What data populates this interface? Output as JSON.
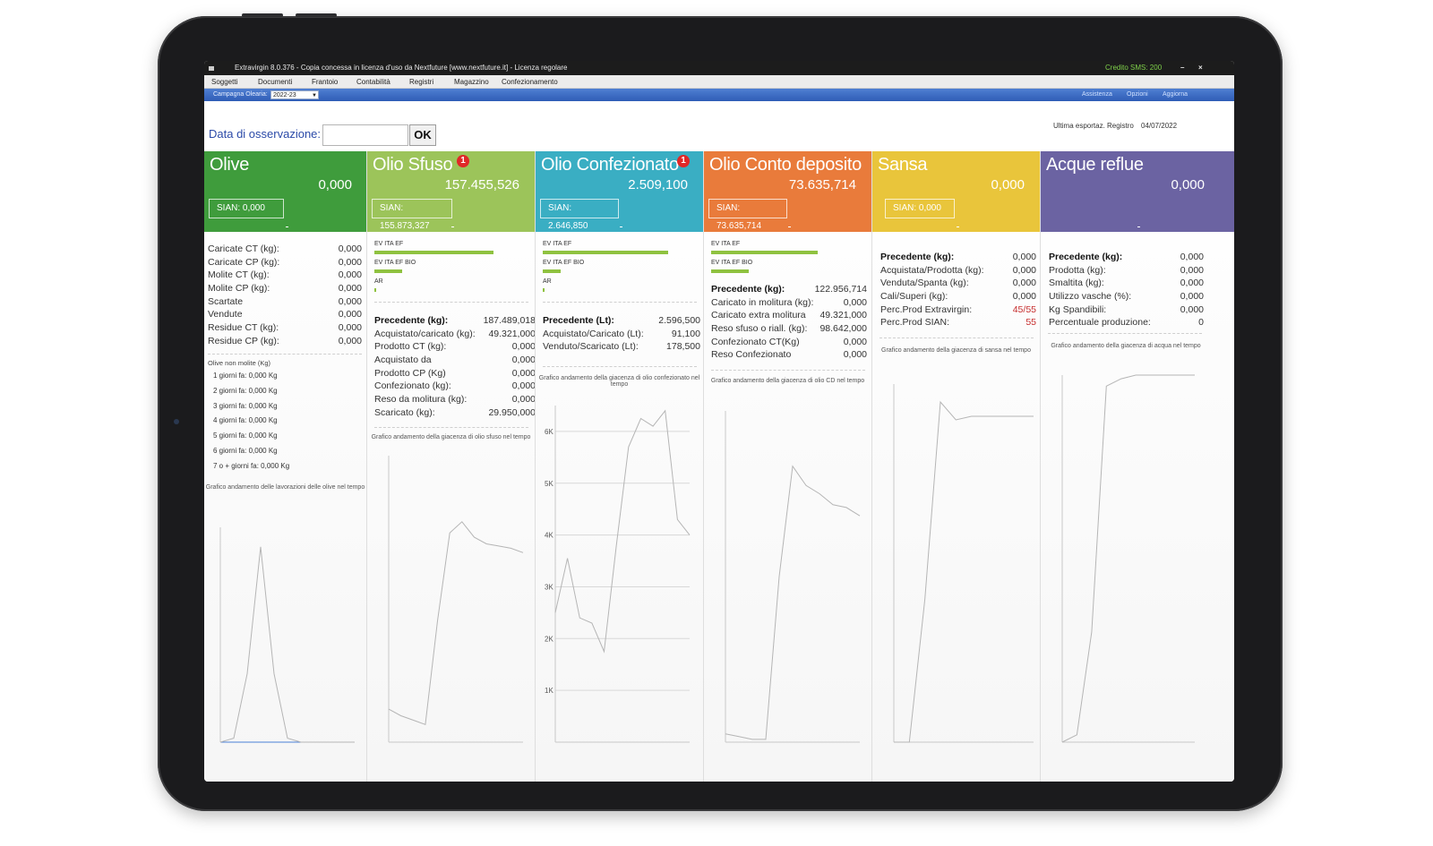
{
  "titlebar": {
    "title": "Extravirgin 8.0.376 - Copia concessa in licenza d'uso da Nextfuture [www.nextfuture.it] - Licenza regolare",
    "credit": "Credito SMS: 200",
    "minimize": "–",
    "close": "×"
  },
  "menu": [
    "Soggetti",
    "Documenti",
    "Frantoio",
    "Contabilità",
    "Registri",
    "Magazzino",
    "Confezionamento"
  ],
  "campaign": {
    "label": "Campagna Olearia:",
    "value": "2022-23",
    "links": [
      "Assistenza",
      "Opzioni",
      "Aggiorna"
    ]
  },
  "observation": {
    "label": "Data di osservazione:",
    "ok": "OK",
    "value": ""
  },
  "export": {
    "label": "Ultima esportaz. Registro",
    "date": "04/07/2022"
  },
  "colors": {
    "olive": "#3f9c3c",
    "sfuso": "#9cc45a",
    "confezionato": "#3aaec3",
    "conto": "#e97b3b",
    "sansa": "#e9c53b",
    "acque": "#6b63a2",
    "bar": "#8fc240",
    "badge": "#e02828"
  },
  "columns": {
    "olive": {
      "title": "Olive",
      "total": "0,000",
      "sian": "SIAN: 0,000",
      "rows": [
        {
          "label": "Caricate CT (kg):",
          "value": "0,000"
        },
        {
          "label": "Caricate CP (kg):",
          "value": "0,000"
        },
        {
          "label": "Molite CT (kg):",
          "value": "0,000"
        },
        {
          "label": "Molite CP (kg):",
          "value": "0,000"
        },
        {
          "label": "Scartate",
          "value": "0,000"
        },
        {
          "label": "Vendute",
          "value": "0,000"
        },
        {
          "label": "Residue CT (kg):",
          "value": "0,000"
        },
        {
          "label": "Residue CP (kg):",
          "value": "0,000"
        }
      ],
      "nomol_title": "Olive non molite (Kg)",
      "nomol": [
        "1 giorni fa: 0,000 Kg",
        "2 giorni fa: 0,000 Kg",
        "3 giorni fa: 0,000 Kg",
        "4 giorni fa: 0,000 Kg",
        "5 giorni fa: 0,000 Kg",
        "6 giorni fa: 0,000 Kg",
        "7 o + giorni fa: 0,000 Kg"
      ],
      "chart_caption": "Grafico andamento delle lavorazioni delle olive nel tempo"
    },
    "sfuso": {
      "title": "Olio Sfuso",
      "badge": "1",
      "total": "157.455,526",
      "sian": "SIAN: 155.873,327",
      "bars": [
        {
          "label": "EV ITA EF",
          "level": 0.95
        },
        {
          "label": "EV ITA EF BIO",
          "level": 0.22
        },
        {
          "label": "AR",
          "level": 0.01
        }
      ],
      "rows": [
        {
          "label": "Precedente (kg):",
          "value": "187.489,018",
          "bold": true
        },
        {
          "label": "Acquistato/caricato (kg):",
          "value": "49.321,000"
        },
        {
          "label": "Prodotto CT (kg):",
          "value": "0,000"
        },
        {
          "label": "Acquistato da",
          "value": "0,000"
        },
        {
          "label": "Prodotto CP (Kg)",
          "value": "0,000"
        },
        {
          "label": "Confezionato (kg):",
          "value": "0,000"
        },
        {
          "label": "Reso da molitura (kg):",
          "value": "0,000"
        },
        {
          "label": "Scaricato (kg):",
          "value": "29.950,000"
        }
      ],
      "chart_caption": "Grafico andamento della giacenza di olio sfuso nel tempo"
    },
    "confezionato": {
      "title": "Olio Confezionato",
      "badge": "1",
      "total": "2.509,100",
      "sian": "SIAN: 2.646,850",
      "bars": [
        {
          "label": "EV ITA EF",
          "level": 1.0
        },
        {
          "label": "EV ITA EF BIO",
          "level": 0.14
        },
        {
          "label": "AR",
          "level": 0.01
        }
      ],
      "rows": [
        {
          "label": "Precedente (Lt):",
          "value": "2.596,500",
          "bold": true
        },
        {
          "label": "Acquistato/Caricato (Lt):",
          "value": "91,100"
        },
        {
          "label": "Venduto/Scaricato (Lt):",
          "value": "178,500"
        }
      ],
      "chart_caption": "Grafico andamento della giacenza di olio confezionato nel tempo"
    },
    "conto": {
      "title": "Olio Conto deposito",
      "total": "73.635,714",
      "sian": "SIAN: 73.635,714",
      "bars": [
        {
          "label": "EV ITA EF",
          "level": 0.85
        },
        {
          "label": "EV ITA EF BIO",
          "level": 0.3
        }
      ],
      "rows": [
        {
          "label": "Precedente (kg):",
          "value": "122.956,714",
          "bold": true
        },
        {
          "label": "Caricato in molitura (kg):",
          "value": "0,000"
        },
        {
          "label": "Caricato extra molitura",
          "value": "49.321,000"
        },
        {
          "label": "Reso sfuso o riall. (kg):",
          "value": "98.642,000"
        },
        {
          "label": "Confezionato CT(Kg)",
          "value": "0,000"
        },
        {
          "label": "Reso Confezionato",
          "value": "0,000"
        }
      ],
      "chart_caption": "Grafico andamento della giacenza di olio CD nel tempo"
    },
    "sansa": {
      "title": "Sansa",
      "total": "0,000",
      "sian": "SIAN: 0,000",
      "rows": [
        {
          "label": "Precedente (kg):",
          "value": "0,000",
          "bold": true
        },
        {
          "label": "Acquistata/Prodotta (kg):",
          "value": "0,000"
        },
        {
          "label": "Venduta/Spanta (kg):",
          "value": "0,000"
        },
        {
          "label": "Cali/Superi (kg):",
          "value": "0,000"
        },
        {
          "label": "Perc.Prod Extravirgin:",
          "value": "45/55",
          "red": true
        },
        {
          "label": "Perc.Prod SIAN:",
          "value": "55",
          "red": true
        }
      ],
      "chart_caption": "Grafico andamento della giacenza di sansa nel tempo"
    },
    "acque": {
      "title": "Acque reflue",
      "total": "0,000",
      "rows": [
        {
          "label": "Precedente (kg):",
          "value": "0,000",
          "bold": true
        },
        {
          "label": "Prodotta (kg):",
          "value": "0,000"
        },
        {
          "label": "Smaltita (kg):",
          "value": "0,000"
        },
        {
          "label": "Utilizzo vasche (%):",
          "value": "0,000"
        },
        {
          "label": "Kg Spandibili:",
          "value": "0,000"
        },
        {
          "label": "Percentuale produzione:",
          "value": "0"
        }
      ],
      "chart_caption": "Grafico andamento della giacenza di acqua nel tempo"
    }
  },
  "chart_data": [
    {
      "type": "line",
      "id": "olive",
      "values": [
        0,
        0.02,
        0.35,
        1.0,
        0.35,
        0.02,
        0,
        0,
        0,
        0,
        0
      ],
      "ylim": [
        0,
        1.1
      ]
    },
    {
      "type": "line",
      "id": "sfuso",
      "values": [
        0.15,
        0.12,
        0.1,
        0.08,
        0.55,
        0.95,
        1.0,
        0.93,
        0.9,
        0.89,
        0.88,
        0.86
      ],
      "ylim": [
        0,
        1.3
      ]
    },
    {
      "type": "line",
      "id": "confezionato",
      "yticks": [
        "1K",
        "2K",
        "3K",
        "4K",
        "5K",
        "6K"
      ],
      "values": [
        2500,
        3550,
        2400,
        2300,
        1750,
        3800,
        5700,
        6250,
        6100,
        6400,
        4300,
        4000
      ],
      "ylim": [
        0,
        6500
      ]
    },
    {
      "type": "line",
      "id": "conto",
      "values": [
        0.03,
        0.02,
        0.01,
        0.01,
        0.6,
        1.0,
        0.93,
        0.9,
        0.86,
        0.85,
        0.82
      ],
      "ylim": [
        0,
        1.2
      ]
    },
    {
      "type": "line",
      "id": "sansa",
      "values": [
        0,
        0,
        0.4,
        0.95,
        0.9,
        0.91,
        0.91,
        0.91,
        0.91,
        0.91
      ],
      "ylim": [
        0,
        1.0
      ]
    },
    {
      "type": "line",
      "id": "acque",
      "values": [
        0,
        0.02,
        0.3,
        0.97,
        0.99,
        1.0,
        1.0,
        1.0,
        1.0,
        1.0
      ],
      "ylim": [
        0,
        1.0
      ]
    }
  ]
}
